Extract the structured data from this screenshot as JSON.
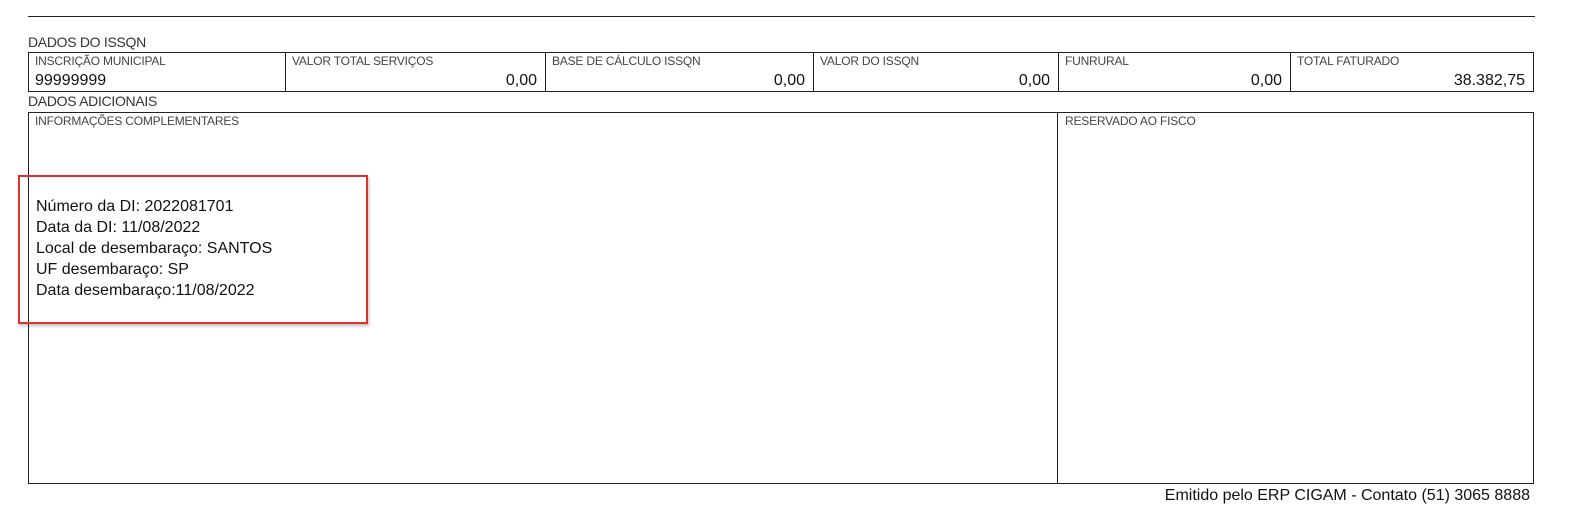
{
  "issqn": {
    "title": "DADOS DO ISSQN",
    "cells": [
      {
        "label": "INSCRIÇÃO MUNICIPAL",
        "value": "99999999"
      },
      {
        "label": "VALOR TOTAL SERVIÇOS",
        "value": "0,00"
      },
      {
        "label": "BASE DE CÁLCULO ISSQN",
        "value": "0,00"
      },
      {
        "label": "VALOR DO ISSQN",
        "value": "0,00"
      },
      {
        "label": "FUNRURAL",
        "value": "0,00"
      },
      {
        "label": "TOTAL FATURADO",
        "value": "38.382,75"
      }
    ]
  },
  "adicionais": {
    "title": "DADOS ADICIONAIS",
    "info_label": "INFORMAÇÕES COMPLEMENTARES",
    "fisco_label": "RESERVADO AO FISCO",
    "lines": [
      "Número da DI: 2022081701",
      "Data da DI: 11/08/2022",
      "Local de desembaraço: SANTOS",
      "UF desembaraço: SP",
      "Data desembaraço:11/08/2022"
    ],
    "highlight_color": "#e03030"
  },
  "footer": "Emitido pelo ERP CIGAM - Contato (51) 3065 8888"
}
